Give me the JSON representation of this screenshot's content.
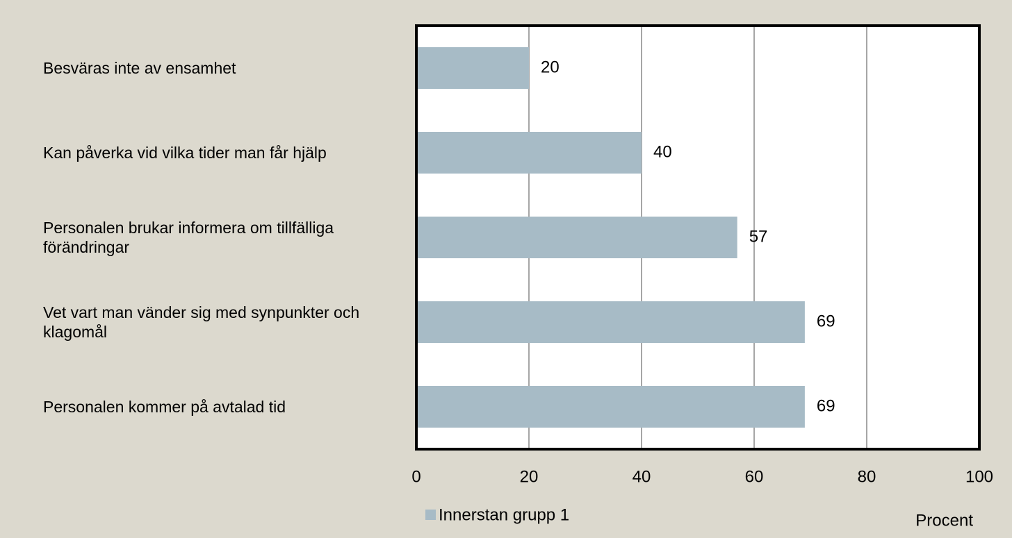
{
  "chart_data": {
    "type": "bar",
    "orientation": "horizontal",
    "categories": [
      "Besväras inte av ensamhet",
      "Kan påverka vid vilka tider man får hjälp",
      "Personalen brukar informera om tillfälliga förändringar",
      "Vet vart man vänder sig med synpunkter och klagomål",
      "Personalen kommer på avtalad tid"
    ],
    "series": [
      {
        "name": "Innerstan grupp 1",
        "color": "#a7bbc6",
        "values": [
          20,
          40,
          57,
          69,
          69
        ]
      }
    ],
    "x_label": "Procent",
    "xlim": [
      0,
      100
    ],
    "xticks": [
      0,
      20,
      40,
      60,
      80,
      100
    ],
    "grid": true,
    "legend": "bottom"
  }
}
